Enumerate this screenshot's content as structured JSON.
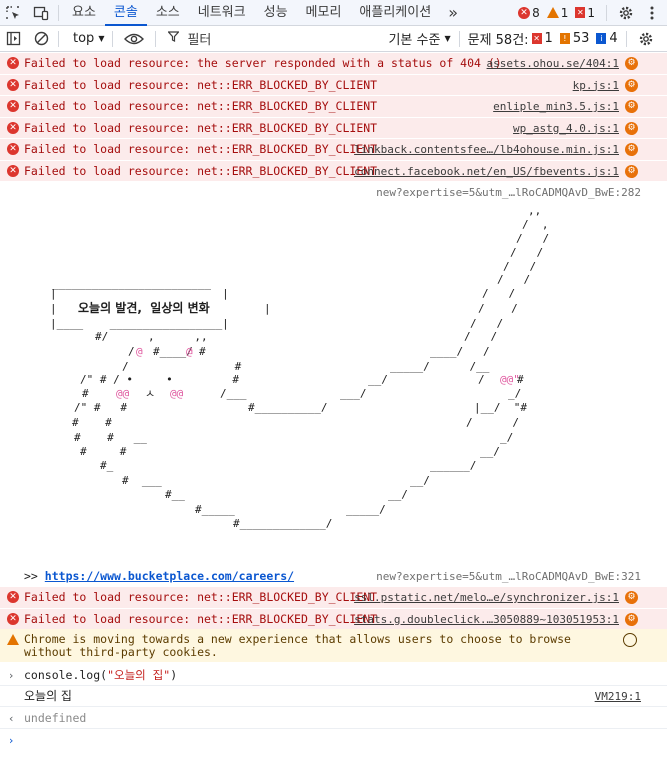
{
  "devtools": {
    "tabs": [
      "요소",
      "콘솔",
      "소스",
      "네트워크",
      "성능",
      "메모리",
      "애플리케이션"
    ],
    "active_tab": "콘솔",
    "more_tabs_glyph": "»",
    "badges": {
      "errors": "8",
      "warnings": "1",
      "issues": "1"
    }
  },
  "toolbar": {
    "context": "top",
    "filter_placeholder": "필터",
    "levels": "기본 수준",
    "issues_label": "문제 58건:",
    "issue_errors": "1",
    "issue_warnings": "53",
    "issue_info": "4"
  },
  "errors_top": [
    {
      "message": "Failed to load resource: the server responded with a status of 404 ()",
      "source": "assets.ohou.se/404:1"
    },
    {
      "message": "Failed to load resource: net::ERR_BLOCKED_BY_CLIENT",
      "source": "kp.js:1"
    },
    {
      "message": "Failed to load resource: net::ERR_BLOCKED_BY_CLIENT",
      "source": "enliple_min3.5.js:1"
    },
    {
      "message": "Failed to load resource: net::ERR_BLOCKED_BY_CLIENT",
      "source": "wp_astg_4.0.js:1"
    },
    {
      "message": "Failed to load resource: net::ERR_BLOCKED_BY_CLIENT",
      "source": "linkback.contentsfee…/lb4ohouse.min.js:1"
    },
    {
      "message": "Failed to load resource: net::ERR_BLOCKED_BY_CLIENT",
      "source": "connect.facebook.net/en_US/fbevents.js:1"
    }
  ],
  "art_source": "new?expertise=5&utm_…lRoCADMQAvD_BwE:282",
  "art": {
    "box_text": "오늘의 발견,  일상의 변화",
    "box_bar": "|"
  },
  "careers": {
    "prompt": ">>",
    "url": "https://www.bucketplace.com/careers/",
    "source": "new?expertise=5&utm_…lRoCADMQAvD_BwE:321"
  },
  "errors_bottom": [
    {
      "message": "Failed to load resource: net::ERR_BLOCKED_BY_CLIENT",
      "source": "ssl.pstatic.net/melo…e/synchronizer.js:1"
    },
    {
      "message": "Failed to load resource: net::ERR_BLOCKED_BY_CLIENT",
      "source": "stats.g.doubleclick.…3050889~103051953:1"
    }
  ],
  "warning": {
    "message": "Chrome is moving towards a new experience that allows users to choose to browse without third-party cookies."
  },
  "log": {
    "input_prefix": "console.log(",
    "input_string": "\"오늘의 집\"",
    "input_suffix": ")",
    "output": "오늘의 집",
    "output_source": "VM219:1",
    "return_value": "undefined"
  },
  "colors": {
    "error_bg": "#fcebeb",
    "error_text": "#a50e0e",
    "warning_bg": "#fef7e0",
    "accent": "#0b57d0",
    "art_pink": "#e05aa0"
  }
}
